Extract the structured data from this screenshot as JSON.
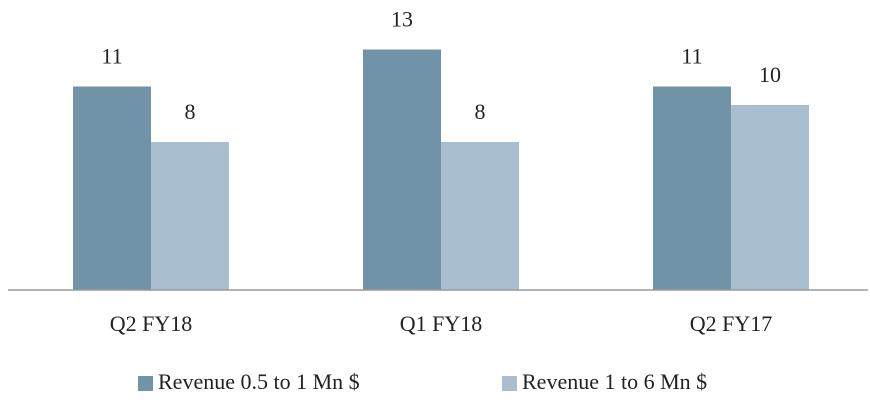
{
  "chart_data": {
    "type": "bar",
    "categories": [
      "Q2 FY18",
      "Q1 FY18",
      "Q2 FY17"
    ],
    "series": [
      {
        "name": "Revenue 0.5 to 1 Mn $",
        "color": "#7193a8",
        "values": [
          11,
          13,
          11
        ]
      },
      {
        "name": "Revenue 1 to 6 Mn $",
        "color": "#a9bfcf",
        "values": [
          8,
          8,
          10
        ]
      }
    ]
  }
}
